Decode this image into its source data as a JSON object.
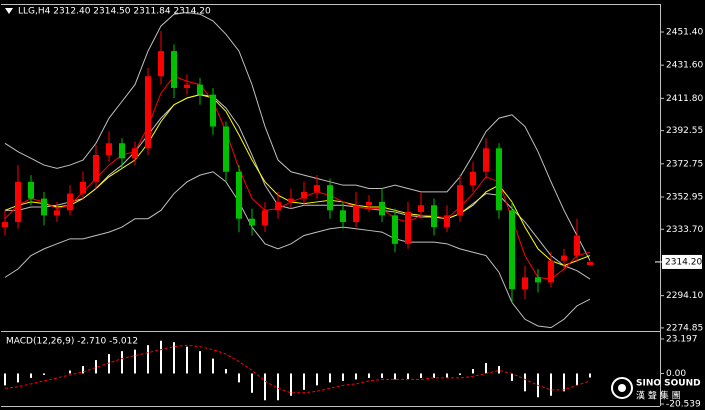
{
  "chart_data": [
    {
      "type": "candlestick",
      "title": "LLG,H4  2312.40 2314.50 2311.84 2314.20",
      "open": [
        2335,
        2338,
        2362,
        2352,
        2342,
        2345,
        2355,
        2362,
        2378,
        2385,
        2376,
        2382,
        2425,
        2440,
        2418,
        2420,
        2414,
        2395,
        2368,
        2340,
        2336,
        2345,
        2350,
        2352,
        2356,
        2360,
        2345,
        2338,
        2348,
        2350,
        2342,
        2325,
        2344,
        2348,
        2335,
        2342,
        2360,
        2368,
        2382,
        2345,
        2298,
        2305,
        2302,
        2315,
        2318,
        2312.4
      ],
      "high": [
        2345,
        2372,
        2366,
        2356,
        2350,
        2360,
        2368,
        2384,
        2392,
        2388,
        2386,
        2430,
        2452,
        2444,
        2426,
        2424,
        2418,
        2398,
        2372,
        2346,
        2350,
        2356,
        2358,
        2362,
        2366,
        2364,
        2350,
        2356,
        2354,
        2358,
        2346,
        2350,
        2356,
        2352,
        2348,
        2366,
        2374,
        2388,
        2385,
        2350,
        2312,
        2310,
        2320,
        2322,
        2340,
        2314.5
      ],
      "low": [
        2330,
        2334,
        2348,
        2336,
        2338,
        2342,
        2352,
        2358,
        2374,
        2370,
        2372,
        2378,
        2420,
        2412,
        2414,
        2408,
        2390,
        2362,
        2332,
        2330,
        2332,
        2340,
        2346,
        2348,
        2352,
        2340,
        2334,
        2335,
        2344,
        2338,
        2320,
        2322,
        2340,
        2330,
        2332,
        2338,
        2356,
        2364,
        2340,
        2290,
        2292,
        2296,
        2299,
        2310,
        2314,
        2311.84
      ],
      "close": [
        2338,
        2362,
        2352,
        2342,
        2345,
        2355,
        2362,
        2378,
        2385,
        2376,
        2382,
        2425,
        2440,
        2418,
        2420,
        2414,
        2395,
        2368,
        2340,
        2336,
        2345,
        2350,
        2352,
        2356,
        2360,
        2345,
        2338,
        2348,
        2350,
        2342,
        2325,
        2344,
        2348,
        2335,
        2342,
        2360,
        2368,
        2382,
        2345,
        2298,
        2305,
        2302,
        2315,
        2318,
        2330,
        2314.2
      ],
      "up_color": "#ff0000",
      "down_color": "#00c000",
      "overlays": [
        {
          "color": "#c0c0c0",
          "values": [
            2385,
            2380,
            2376,
            2372,
            2370,
            2372,
            2375,
            2385,
            2400,
            2410,
            2420,
            2440,
            2455,
            2462,
            2463,
            2462,
            2458,
            2450,
            2440,
            2420,
            2395,
            2375,
            2368,
            2366,
            2364,
            2362,
            2360,
            2360,
            2358,
            2358,
            2360,
            2358,
            2356,
            2356,
            2356,
            2365,
            2378,
            2392,
            2400,
            2402,
            2395,
            2380,
            2362,
            2345,
            2330,
            2315
          ]
        },
        {
          "color": "#c0c0c0",
          "values": [
            2345,
            2345,
            2347,
            2347,
            2348,
            2350,
            2352,
            2358,
            2366,
            2372,
            2380,
            2390,
            2400,
            2408,
            2412,
            2414,
            2413,
            2406,
            2395,
            2378,
            2360,
            2348,
            2346,
            2348,
            2348,
            2348,
            2348,
            2347,
            2346,
            2345,
            2344,
            2342,
            2341,
            2341,
            2340,
            2343,
            2349,
            2355,
            2354,
            2346,
            2338,
            2328,
            2318,
            2312,
            2309,
            2304
          ]
        },
        {
          "color": "#c0c0c0",
          "values": [
            2305,
            2310,
            2318,
            2322,
            2325,
            2328,
            2328,
            2330,
            2332,
            2335,
            2340,
            2340,
            2345,
            2355,
            2362,
            2366,
            2368,
            2362,
            2350,
            2335,
            2325,
            2322,
            2325,
            2330,
            2332,
            2334,
            2335,
            2334,
            2333,
            2332,
            2328,
            2326,
            2326,
            2326,
            2325,
            2322,
            2320,
            2318,
            2308,
            2290,
            2280,
            2276,
            2275,
            2280,
            2288,
            2292
          ]
        },
        {
          "color": "#ffff00",
          "values": [
            2345,
            2348,
            2350,
            2349,
            2347,
            2348,
            2352,
            2358,
            2365,
            2370,
            2375,
            2385,
            2398,
            2408,
            2412,
            2414,
            2412,
            2404,
            2390,
            2375,
            2362,
            2354,
            2350,
            2349,
            2350,
            2351,
            2350,
            2348,
            2347,
            2347,
            2345,
            2343,
            2342,
            2341,
            2340,
            2343,
            2348,
            2356,
            2360,
            2350,
            2335,
            2322,
            2315,
            2312,
            2315,
            2318
          ]
        },
        {
          "color": "#ff0000",
          "values": [
            2340,
            2348,
            2352,
            2350,
            2346,
            2348,
            2356,
            2364,
            2372,
            2378,
            2380,
            2395,
            2415,
            2425,
            2422,
            2420,
            2410,
            2392,
            2370,
            2352,
            2345,
            2346,
            2350,
            2353,
            2356,
            2354,
            2350,
            2347,
            2346,
            2346,
            2340,
            2338,
            2342,
            2342,
            2340,
            2347,
            2355,
            2365,
            2362,
            2340,
            2318,
            2305,
            2304,
            2310,
            2318,
            2320
          ]
        }
      ],
      "ylim": [
        2273,
        2467.5
      ],
      "yticks": [
        {
          "value": 2451.4,
          "label": "2451.40"
        },
        {
          "value": 2431.6,
          "label": "2431.60"
        },
        {
          "value": 2411.8,
          "label": "2411.80"
        },
        2392.55,
        2372.75,
        2352.95,
        {
          "value": 2333.7,
          "label": "2333.70"
        },
        {
          "value": 2294.1,
          "label": "2294.10"
        },
        2274.85
      ],
      "last_price": {
        "value": 2314.2,
        "label": "2314.20"
      }
    },
    {
      "type": "macd",
      "title": "MACD(12,26,9) -2.710 -5.012",
      "histogram": [
        -8,
        -6,
        -3,
        -1,
        0,
        2,
        5,
        9,
        13,
        15,
        16,
        19,
        22,
        21,
        18,
        15,
        10,
        3,
        -6,
        -13,
        -18,
        -18,
        -15,
        -11,
        -8,
        -6,
        -5,
        -4,
        -3,
        -3,
        -4,
        -4,
        -3,
        -3,
        -3,
        -1,
        3,
        7,
        5,
        -5,
        -12,
        -16,
        -15,
        -12,
        -8,
        -2.71
      ],
      "signal": [
        -10,
        -9,
        -7,
        -5,
        -3,
        -1,
        1,
        4,
        7,
        10,
        12,
        14,
        16,
        18,
        19,
        18,
        16,
        13,
        8,
        2,
        -5,
        -10,
        -13,
        -13,
        -12,
        -10,
        -8,
        -7,
        -5,
        -4,
        -4,
        -4,
        -4,
        -3,
        -3,
        -3,
        -2,
        0,
        2,
        0,
        -4,
        -8,
        -11,
        -11,
        -8,
        -5.012
      ],
      "hist_color": "#ffffff",
      "signal_color": "#ff0000",
      "ylim": [
        -21.2,
        27.2
      ],
      "yticks": [
        23.197,
        {
          "value": 0,
          "label": "0.00"
        },
        -20.539
      ]
    }
  ],
  "watermark": {
    "brand": "SINO SOUND",
    "subtitle": "漢 聲 集 團"
  }
}
